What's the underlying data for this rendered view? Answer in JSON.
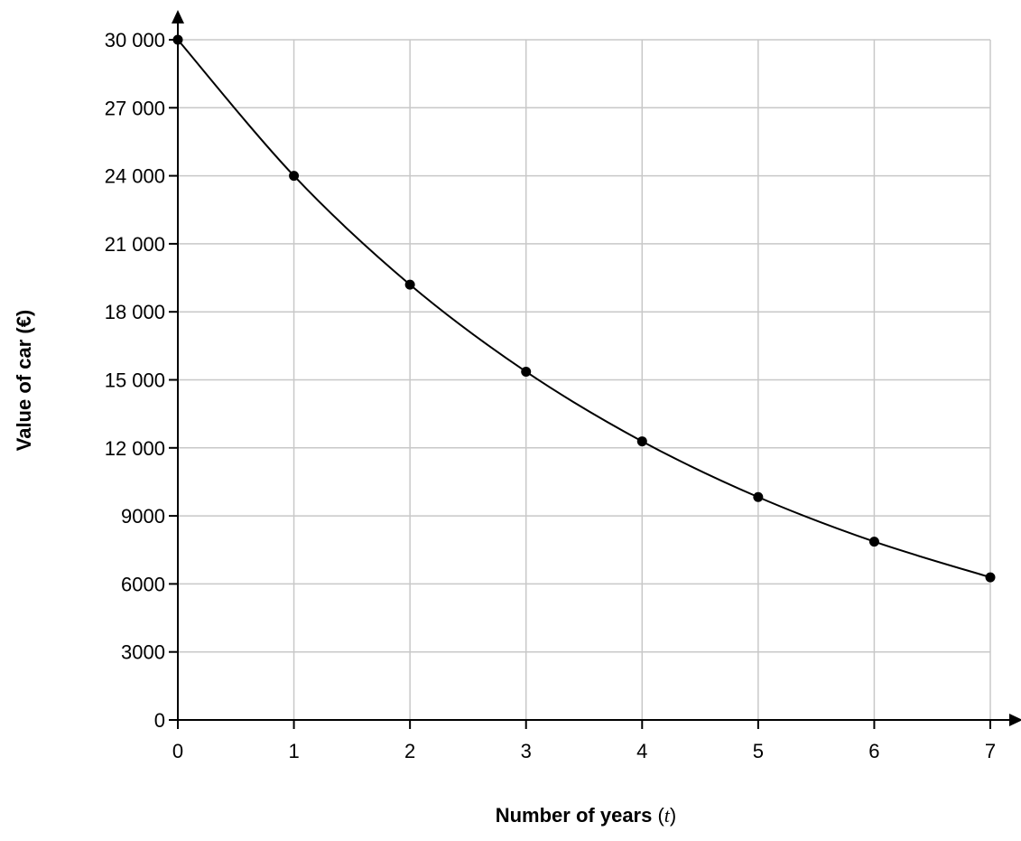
{
  "chart_data": {
    "type": "line",
    "xlabel": {
      "prefix": "Number of years ",
      "paren_open": "(",
      "variable": "t",
      "paren_close": ")"
    },
    "ylabel": "Value of car (€)",
    "xlim": [
      0,
      7
    ],
    "ylim": [
      0,
      30000
    ],
    "x_ticks": [
      "0",
      "1",
      "2",
      "3",
      "4",
      "5",
      "6",
      "7"
    ],
    "y_ticks": [
      "0",
      "3000",
      "6000",
      "9000",
      "12 000",
      "15 000",
      "18 000",
      "21 000",
      "24 000",
      "27 000",
      "30 000"
    ],
    "x_tick_values": [
      0,
      1,
      2,
      3,
      4,
      5,
      6,
      7
    ],
    "y_tick_values": [
      0,
      3000,
      6000,
      9000,
      12000,
      15000,
      18000,
      21000,
      24000,
      27000,
      30000
    ],
    "grid": true,
    "series": [
      {
        "x": [
          0,
          1,
          2,
          3,
          4,
          5,
          6,
          7
        ],
        "y": [
          30000,
          24000,
          19200,
          15360,
          12288,
          9830,
          7864,
          6291
        ],
        "color": "#000000",
        "markers": true,
        "curve": "exponential decay"
      }
    ]
  }
}
